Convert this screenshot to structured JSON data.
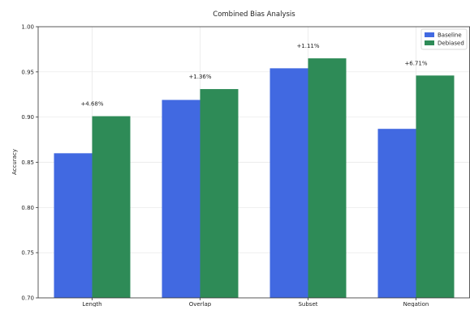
{
  "chart_data": {
    "type": "bar",
    "title": "Combined Bias Analysis",
    "xlabel": "",
    "ylabel": "Accuracy",
    "categories": [
      "Length",
      "Overlap",
      "Subset",
      "Negation"
    ],
    "series": [
      {
        "name": "Baseline",
        "color": "#4169e1",
        "values": [
          0.86,
          0.919,
          0.954,
          0.887
        ]
      },
      {
        "name": "Debiased",
        "color": "#2e8b57",
        "values": [
          0.901,
          0.931,
          0.965,
          0.946
        ]
      }
    ],
    "annotations": [
      "+4.68%",
      "+1.36%",
      "+1.11%",
      "+6.71%"
    ],
    "ylim": [
      0.7,
      1.0
    ],
    "yticks": [
      "0.70",
      "0.75",
      "0.80",
      "0.85",
      "0.90",
      "0.95",
      "1.00"
    ],
    "grid": true,
    "legend_position": "top-right"
  }
}
